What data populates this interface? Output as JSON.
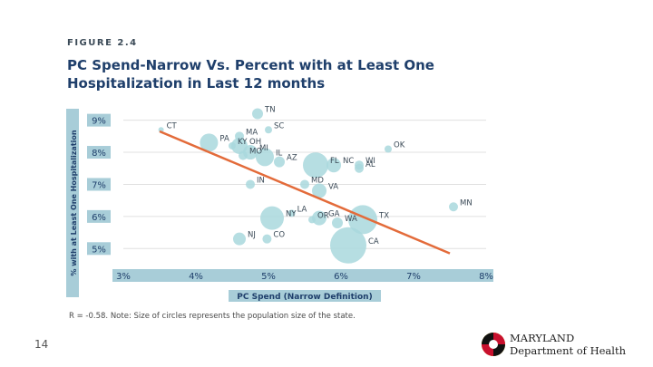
{
  "figure_label": "FIGURE 2.4",
  "title_line1": "PC Spend-Narrow Vs. Percent with at Least One",
  "title_line2": "Hospitalization in Last 12 months",
  "note": "R = -0.58. Note: Size of circles represents the population size of the state.",
  "page_number": "14",
  "logo": {
    "line1": "MARYLAND",
    "line2": "Department of Health",
    "icon": "maryland-flag-emblem-icon"
  },
  "colors": {
    "bubble": "#a9d8dd",
    "trend": "#e36b3a",
    "axis_label_bg": "#a8cdd8",
    "axis_label_text": "#1f3f6b",
    "gridline": "#e0e0e0"
  },
  "chart_data": {
    "type": "scatter",
    "xlabel": "PC Spend (Narrow Definition)",
    "ylabel": "% with at Least One Hospitalization",
    "xlim": [
      3,
      8
    ],
    "ylim": [
      4.5,
      9.3
    ],
    "x_ticks": [
      "3%",
      "4%",
      "5%",
      "6%",
      "7%",
      "8%"
    ],
    "y_ticks": [
      "5%",
      "6%",
      "7%",
      "8%",
      "9%"
    ],
    "grid": "horizontal",
    "trendline": {
      "x": [
        3.5,
        7.5
      ],
      "y": [
        8.65,
        4.85
      ]
    },
    "points": [
      {
        "label": "CT",
        "x": 3.52,
        "y": 8.7,
        "size": 3
      },
      {
        "label": "PA",
        "x": 4.18,
        "y": 8.3,
        "size": 10
      },
      {
        "label": "KY",
        "x": 4.5,
        "y": 8.2,
        "size": 4
      },
      {
        "label": "MA",
        "x": 4.6,
        "y": 8.5,
        "size": 5
      },
      {
        "label": "OH",
        "x": 4.6,
        "y": 8.2,
        "size": 9
      },
      {
        "label": "MO",
        "x": 4.65,
        "y": 7.9,
        "size": 5
      },
      {
        "label": "MI",
        "x": 4.75,
        "y": 8.0,
        "size": 8
      },
      {
        "label": "TN",
        "x": 4.85,
        "y": 9.2,
        "size": 6
      },
      {
        "label": "SC",
        "x": 5.0,
        "y": 8.7,
        "size": 4
      },
      {
        "label": "IL",
        "x": 4.95,
        "y": 7.85,
        "size": 10
      },
      {
        "label": "AZ",
        "x": 5.15,
        "y": 7.7,
        "size": 6
      },
      {
        "label": "IN",
        "x": 4.75,
        "y": 7.0,
        "size": 5
      },
      {
        "label": "FL",
        "x": 5.65,
        "y": 7.6,
        "size": 14
      },
      {
        "label": "NC",
        "x": 5.9,
        "y": 7.6,
        "size": 8
      },
      {
        "label": "WI",
        "x": 6.25,
        "y": 7.6,
        "size": 5
      },
      {
        "label": "AL",
        "x": 6.25,
        "y": 7.5,
        "size": 5
      },
      {
        "label": "MD",
        "x": 5.5,
        "y": 7.0,
        "size": 5
      },
      {
        "label": "VA",
        "x": 5.7,
        "y": 6.8,
        "size": 8
      },
      {
        "label": "OK",
        "x": 6.65,
        "y": 8.1,
        "size": 4
      },
      {
        "label": "NJ",
        "x": 4.6,
        "y": 5.3,
        "size": 7
      },
      {
        "label": "NY",
        "x": 5.05,
        "y": 5.95,
        "size": 13
      },
      {
        "label": "LA",
        "x": 5.32,
        "y": 6.1,
        "size": 4
      },
      {
        "label": "GA",
        "x": 5.7,
        "y": 5.95,
        "size": 8
      },
      {
        "label": "OR",
        "x": 5.6,
        "y": 5.9,
        "size": 4
      },
      {
        "label": "CO",
        "x": 4.98,
        "y": 5.3,
        "size": 5
      },
      {
        "label": "WA",
        "x": 5.95,
        "y": 5.8,
        "size": 6
      },
      {
        "label": "TX",
        "x": 6.3,
        "y": 5.9,
        "size": 16
      },
      {
        "label": "CA",
        "x": 6.1,
        "y": 5.1,
        "size": 20
      },
      {
        "label": "MN",
        "x": 7.55,
        "y": 6.3,
        "size": 5
      }
    ]
  }
}
